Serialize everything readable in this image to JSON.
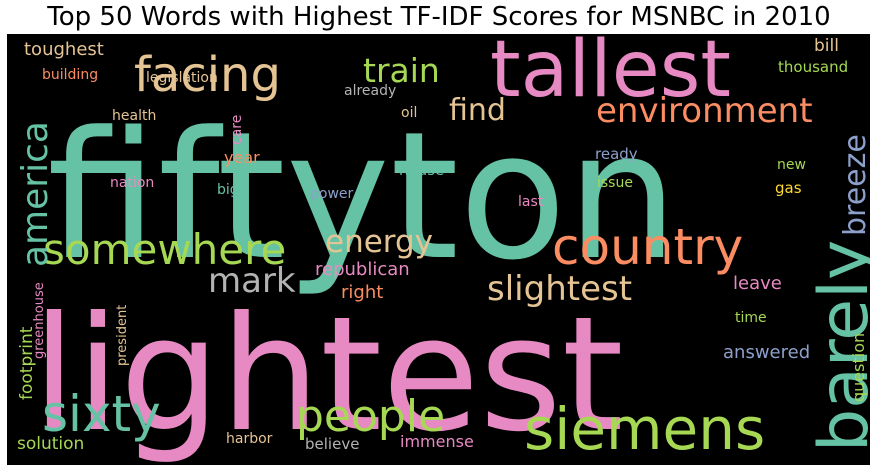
{
  "chart_data": {
    "type": "wordcloud",
    "title": "Top 50 Words with Highest TF-IDF Scores for MSNBC in 2010",
    "background": "#000000",
    "palette": {
      "teal": "#66c2a5",
      "orange": "#fc8d62",
      "blue": "#8da0cb",
      "pink": "#e78ac3",
      "green": "#a6d854",
      "yellow": "#ffd92f",
      "tan": "#e5c494",
      "gray": "#b3b3b3"
    },
    "words": [
      {
        "text": "fiftyton",
        "color": "#66c2a5"
      },
      {
        "text": "lightest",
        "color": "#e78ac3"
      },
      {
        "text": "tallest",
        "color": "#e78ac3"
      },
      {
        "text": "country",
        "color": "#fc8d62"
      },
      {
        "text": "siemens",
        "color": "#a6d854"
      },
      {
        "text": "barely",
        "color": "#66c2a5"
      },
      {
        "text": "facing",
        "color": "#e5c494"
      },
      {
        "text": "somewhere",
        "color": "#a6d854"
      },
      {
        "text": "sixty",
        "color": "#66c2a5"
      },
      {
        "text": "people",
        "color": "#a6d854"
      },
      {
        "text": "environment",
        "color": "#fc8d62"
      },
      {
        "text": "slightest",
        "color": "#e5c494"
      },
      {
        "text": "america",
        "color": "#66c2a5"
      },
      {
        "text": "energy",
        "color": "#e5c494"
      },
      {
        "text": "mark",
        "color": "#b3b3b3"
      },
      {
        "text": "train",
        "color": "#a6d854"
      },
      {
        "text": "find",
        "color": "#e5c494"
      },
      {
        "text": "breeze",
        "color": "#8da0cb"
      },
      {
        "text": "republican",
        "color": "#e78ac3"
      },
      {
        "text": "answered",
        "color": "#8da0cb"
      },
      {
        "text": "toughest",
        "color": "#e5c494"
      },
      {
        "text": "right",
        "color": "#fc8d62"
      },
      {
        "text": "leave",
        "color": "#e78ac3"
      },
      {
        "text": "question",
        "color": "#a6d854"
      },
      {
        "text": "footprint",
        "color": "#a6d854"
      },
      {
        "text": "solution",
        "color": "#a6d854"
      },
      {
        "text": "immense",
        "color": "#e78ac3"
      },
      {
        "text": "year",
        "color": "#fc8d62"
      },
      {
        "text": "house",
        "color": "#66c2a5"
      },
      {
        "text": "bill",
        "color": "#e5c494"
      },
      {
        "text": "thousand",
        "color": "#a6d854"
      },
      {
        "text": "building",
        "color": "#fc8d62"
      },
      {
        "text": "legislation",
        "color": "#e5c494"
      },
      {
        "text": "already",
        "color": "#b3b3b3"
      },
      {
        "text": "health",
        "color": "#e5c494"
      },
      {
        "text": "care",
        "color": "#e78ac3"
      },
      {
        "text": "oil",
        "color": "#e5c494"
      },
      {
        "text": "ready",
        "color": "#8da0cb"
      },
      {
        "text": "new",
        "color": "#a6d854"
      },
      {
        "text": "gas",
        "color": "#ffd92f"
      },
      {
        "text": "issue",
        "color": "#a6d854"
      },
      {
        "text": "nation",
        "color": "#e78ac3"
      },
      {
        "text": "big",
        "color": "#66c2a5"
      },
      {
        "text": "power",
        "color": "#8da0cb"
      },
      {
        "text": "last",
        "color": "#e78ac3"
      },
      {
        "text": "time",
        "color": "#a6d854"
      },
      {
        "text": "greenhouse",
        "color": "#e78ac3"
      },
      {
        "text": "president",
        "color": "#e5c494"
      },
      {
        "text": "harbor",
        "color": "#e5c494"
      },
      {
        "text": "believe",
        "color": "#b3b3b3"
      }
    ]
  }
}
